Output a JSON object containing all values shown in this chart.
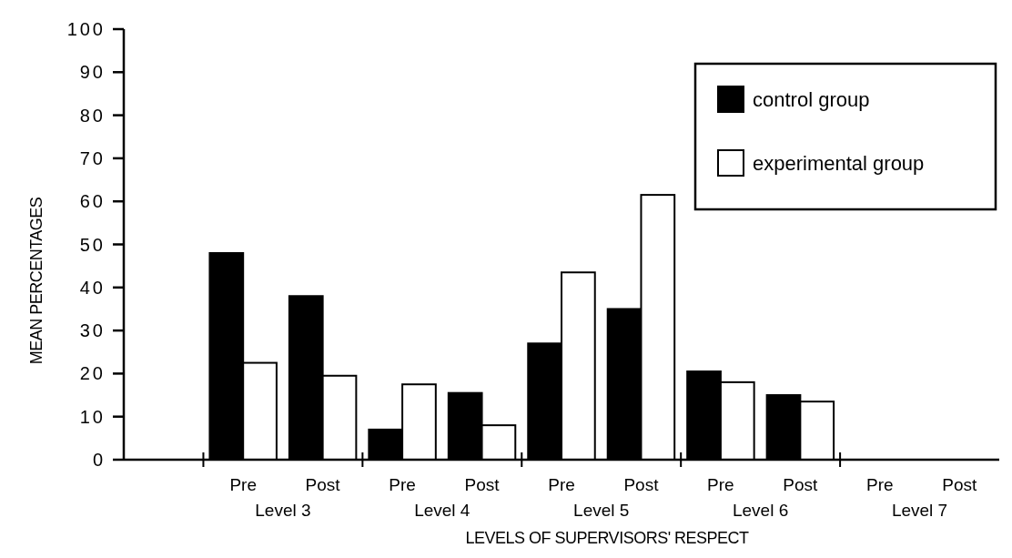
{
  "chart_data": {
    "type": "bar",
    "xlabel": "LEVELS OF SUPERVISORS' RESPECT",
    "ylabel": "MEAN PERCENTAGES",
    "categories": [
      null,
      "Pre",
      "Post",
      "Pre",
      "Post",
      "Pre",
      "Post",
      "Pre",
      "Post",
      "Pre",
      "Post"
    ],
    "series": [
      {
        "name": "control group",
        "color": "#000000",
        "values": [
          null,
          48,
          38,
          7,
          15.5,
          27,
          35,
          20.5,
          15,
          0,
          0
        ]
      },
      {
        "name": "experimental group",
        "color": "#ffffff",
        "values": [
          null,
          22.5,
          19.5,
          17.5,
          8,
          43.5,
          61.5,
          18,
          13.5,
          0,
          0
        ]
      }
    ],
    "annotations": [
      "Level 3",
      "Level 4",
      "Level 5",
      "Level 6",
      "Level 7"
    ],
    "ylim": [
      0,
      100
    ],
    "yticks": [
      0,
      10,
      20,
      30,
      40,
      50,
      60,
      70,
      80,
      90,
      100
    ],
    "legend": "top right",
    "grid": false
  }
}
